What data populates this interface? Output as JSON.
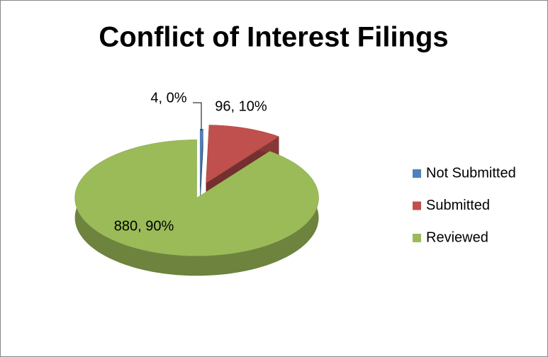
{
  "chart_data": {
    "type": "pie",
    "title": "Conflict of Interest Filings",
    "categories": [
      "Not Submitted",
      "Submitted",
      "Reviewed"
    ],
    "values": [
      4,
      96,
      880
    ],
    "value_labels": [
      "4, 0%",
      "96, 10%",
      "880, 90%"
    ],
    "colors": [
      "#4f81bd",
      "#c0504d",
      "#9bbb59"
    ],
    "legend": "right"
  }
}
